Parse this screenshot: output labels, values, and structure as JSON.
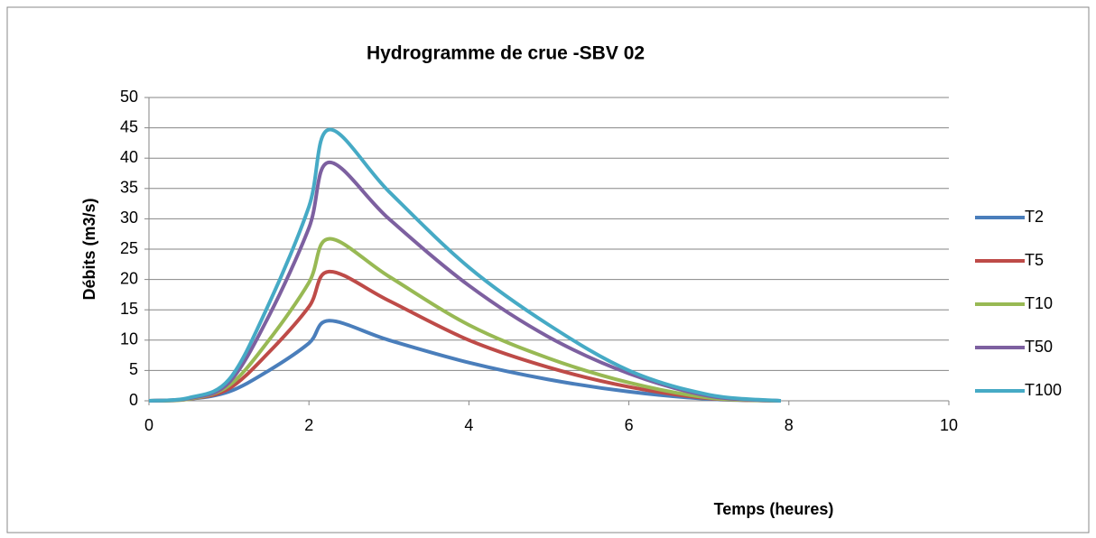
{
  "chart_data": {
    "type": "line",
    "title": "Hydrogramme de crue -SBV 02",
    "x_label": "Temps (heures)",
    "y_label": "Débits (m3/s)",
    "x": [
      0,
      0.5,
      1,
      1.5,
      2,
      2.25,
      3,
      4,
      5,
      6,
      7,
      7.9
    ],
    "series": [
      {
        "name": "T2",
        "color": "#4a7ebb",
        "values": [
          0,
          0.3,
          1.5,
          5,
          9.5,
          13.2,
          10,
          6.3,
          3.5,
          1.5,
          0.3,
          0
        ]
      },
      {
        "name": "T5",
        "color": "#be4b48",
        "values": [
          0,
          0.3,
          2,
          8,
          15.5,
          21.3,
          16.5,
          10,
          5.5,
          2.3,
          0.4,
          0
        ]
      },
      {
        "name": "T10",
        "color": "#98b954",
        "values": [
          0,
          0.3,
          2.5,
          10,
          19.5,
          26.7,
          20.5,
          12.5,
          7,
          3,
          0.5,
          0
        ]
      },
      {
        "name": "T50",
        "color": "#7d60a0",
        "values": [
          0,
          0.4,
          3,
          14,
          28.5,
          39.3,
          30,
          19,
          10.5,
          4.5,
          0.8,
          0
        ]
      },
      {
        "name": "T100",
        "color": "#46aac5",
        "values": [
          0,
          0.5,
          3.5,
          16,
          32,
          44.7,
          34.5,
          22,
          12.5,
          5,
          1,
          0
        ]
      }
    ],
    "xlim": [
      0,
      10
    ],
    "xticks": [
      0,
      2,
      4,
      6,
      8,
      10
    ],
    "ylim": [
      0,
      50
    ],
    "yticks": [
      0,
      5,
      10,
      15,
      20,
      25,
      30,
      35,
      40,
      45,
      50
    ],
    "grid": true,
    "legend": "right"
  }
}
